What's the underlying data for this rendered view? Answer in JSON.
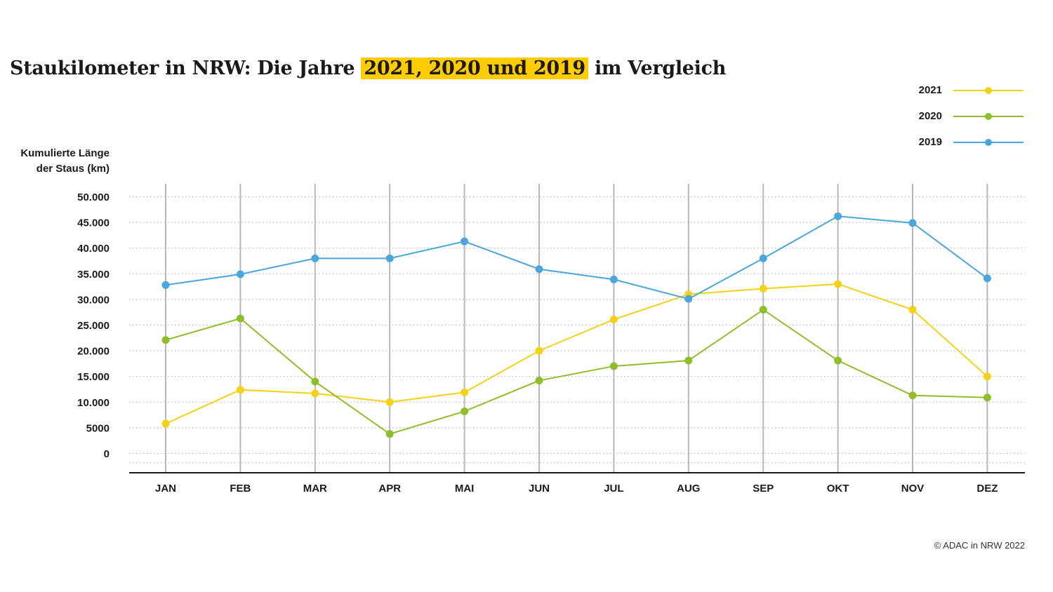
{
  "title": {
    "prefix": "Staukilometer in NRW: Die Jahre ",
    "highlight": "2021, 2020 und 2019",
    "suffix": " im Vergleich"
  },
  "ylabel_line1": "Kumulierte Länge",
  "ylabel_line2": "der Staus (km)",
  "footer": "© ADAC in NRW 2022",
  "colors": {
    "s2021": "#f5d117",
    "s2020": "#8fbe2a",
    "s2019": "#4aa6dc",
    "highlight": "#ffcc00"
  },
  "chart_data": {
    "type": "line",
    "title": "Staukilometer in NRW: Die Jahre 2021, 2020 und 2019 im Vergleich",
    "xlabel": "",
    "ylabel": "Kumulierte Länge der Staus (km)",
    "categories": [
      "JAN",
      "FEB",
      "MAR",
      "APR",
      "MAI",
      "JUN",
      "JUL",
      "AUG",
      "SEP",
      "OKT",
      "NOV",
      "DEZ"
    ],
    "yticks": [
      0,
      5000,
      10000,
      15000,
      20000,
      25000,
      30000,
      35000,
      40000,
      45000,
      50000
    ],
    "ytick_labels": [
      "0",
      "5000",
      "10.000",
      "15.000",
      "20.000",
      "25.000",
      "30.000",
      "35.000",
      "40.000",
      "45.000",
      "50.000"
    ],
    "ylim": [
      -3600,
      52500
    ],
    "grid": true,
    "legend_position": "top-right",
    "series": [
      {
        "name": "2021",
        "color": "#f5d117",
        "values": [
          5800,
          12400,
          11700,
          10000,
          11900,
          20000,
          26100,
          31000,
          32100,
          33000,
          28000,
          15000
        ]
      },
      {
        "name": "2020",
        "color": "#8fbe2a",
        "values": [
          22100,
          26300,
          14000,
          3800,
          8200,
          14200,
          17000,
          18100,
          28000,
          18100,
          11300,
          10900
        ]
      },
      {
        "name": "2019",
        "color": "#4aa6dc",
        "values": [
          32800,
          34900,
          38000,
          38000,
          41300,
          35900,
          33900,
          30100,
          38000,
          46200,
          44900,
          34100
        ]
      }
    ]
  }
}
